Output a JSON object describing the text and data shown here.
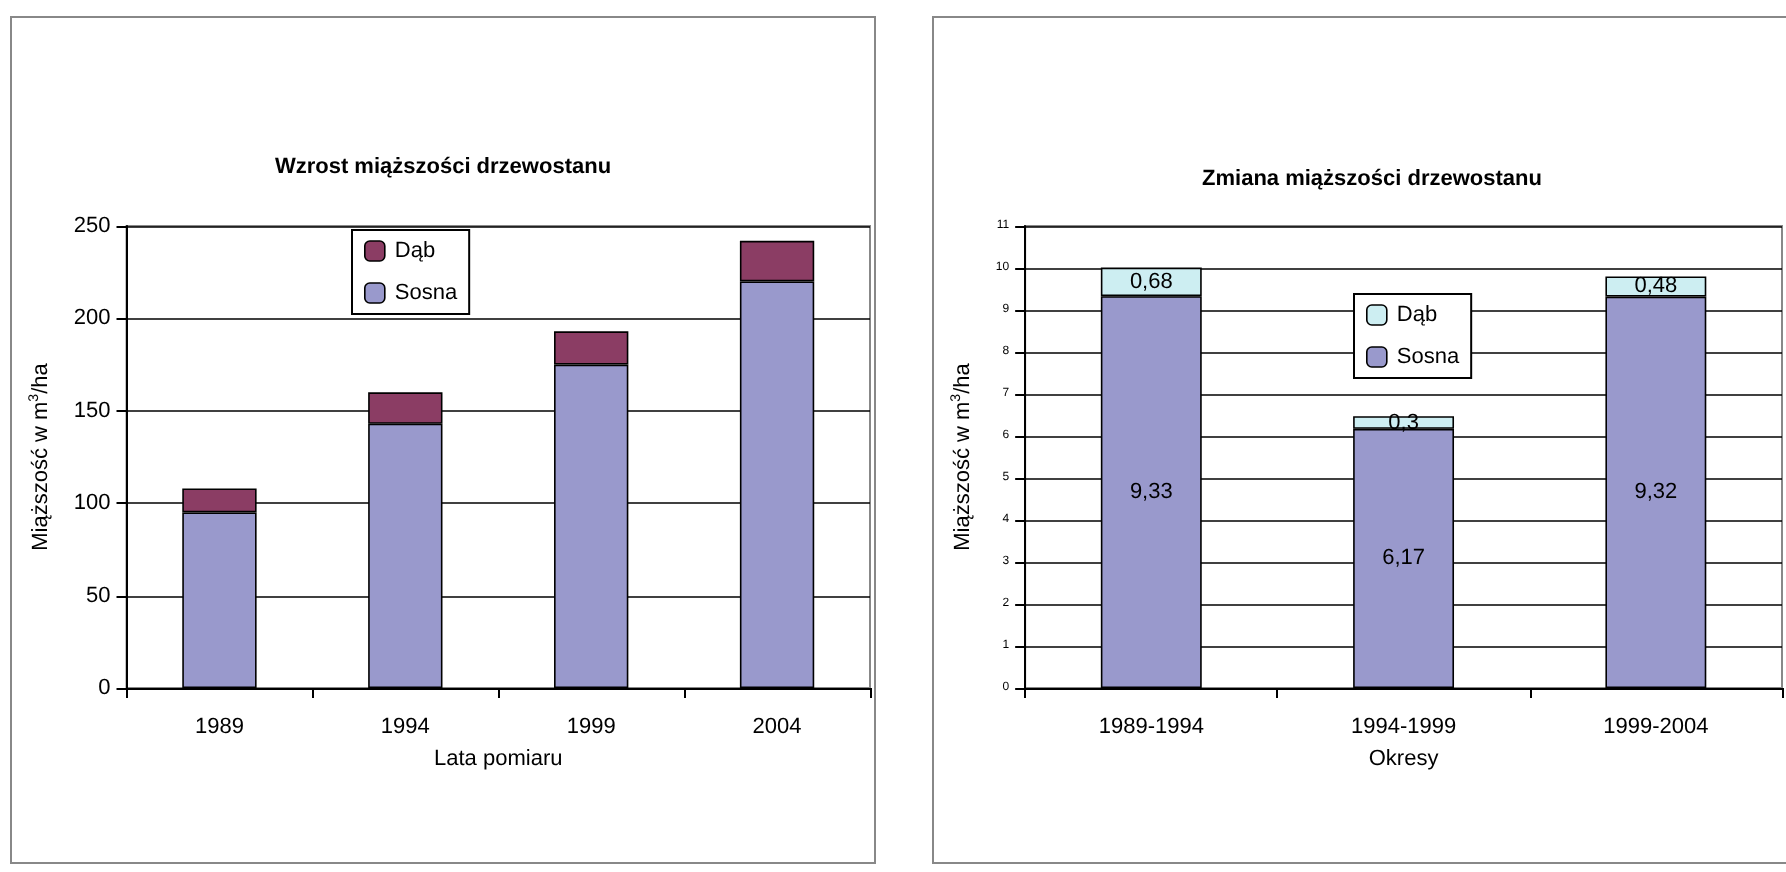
{
  "chart_data": [
    {
      "type": "bar",
      "title": "Wzrost miąższości drzewostanu",
      "xlabel": "Lata pomiaru",
      "ylabel": "Miąższość w m$^{3}$/ha",
      "categories": [
        "1989",
        "1994",
        "1999",
        "2004"
      ],
      "stacked": true,
      "series": [
        {
          "name": "Sosna",
          "color": "#9999cc",
          "values": [
            95,
            143,
            175,
            220
          ]
        },
        {
          "name": "Dąb",
          "color": "#8b3d64",
          "values": [
            13,
            17,
            18,
            22
          ]
        }
      ],
      "ylim": [
        0,
        250
      ],
      "yticks": [
        0,
        50,
        100,
        150,
        200,
        250
      ],
      "grid": "y",
      "legend": "top"
    },
    {
      "type": "bar",
      "title": "Zmiana miąższości drzewostanu",
      "xlabel": "Okresy",
      "ylabel": "Miąższość w m$^{3}$/ha",
      "categories": [
        "1989-1994",
        "1994-1999",
        "1999-2004"
      ],
      "stacked": true,
      "series": [
        {
          "name": "Sosna",
          "color": "#9999cc",
          "values": [
            9.33,
            6.17,
            9.32
          ],
          "value_labels": [
            "9,33",
            "6,17",
            "9,32"
          ]
        },
        {
          "name": "Dąb",
          "color": "#cdeef2",
          "values": [
            0.68,
            0.3,
            0.48
          ],
          "value_labels": [
            "0,68",
            "0,3",
            "0,48"
          ]
        }
      ],
      "ylim": [
        0,
        11
      ],
      "yticks": [
        0,
        1,
        2,
        3,
        4,
        5,
        6,
        7,
        8,
        9,
        10,
        11
      ],
      "grid": "y",
      "legend": "top"
    }
  ]
}
